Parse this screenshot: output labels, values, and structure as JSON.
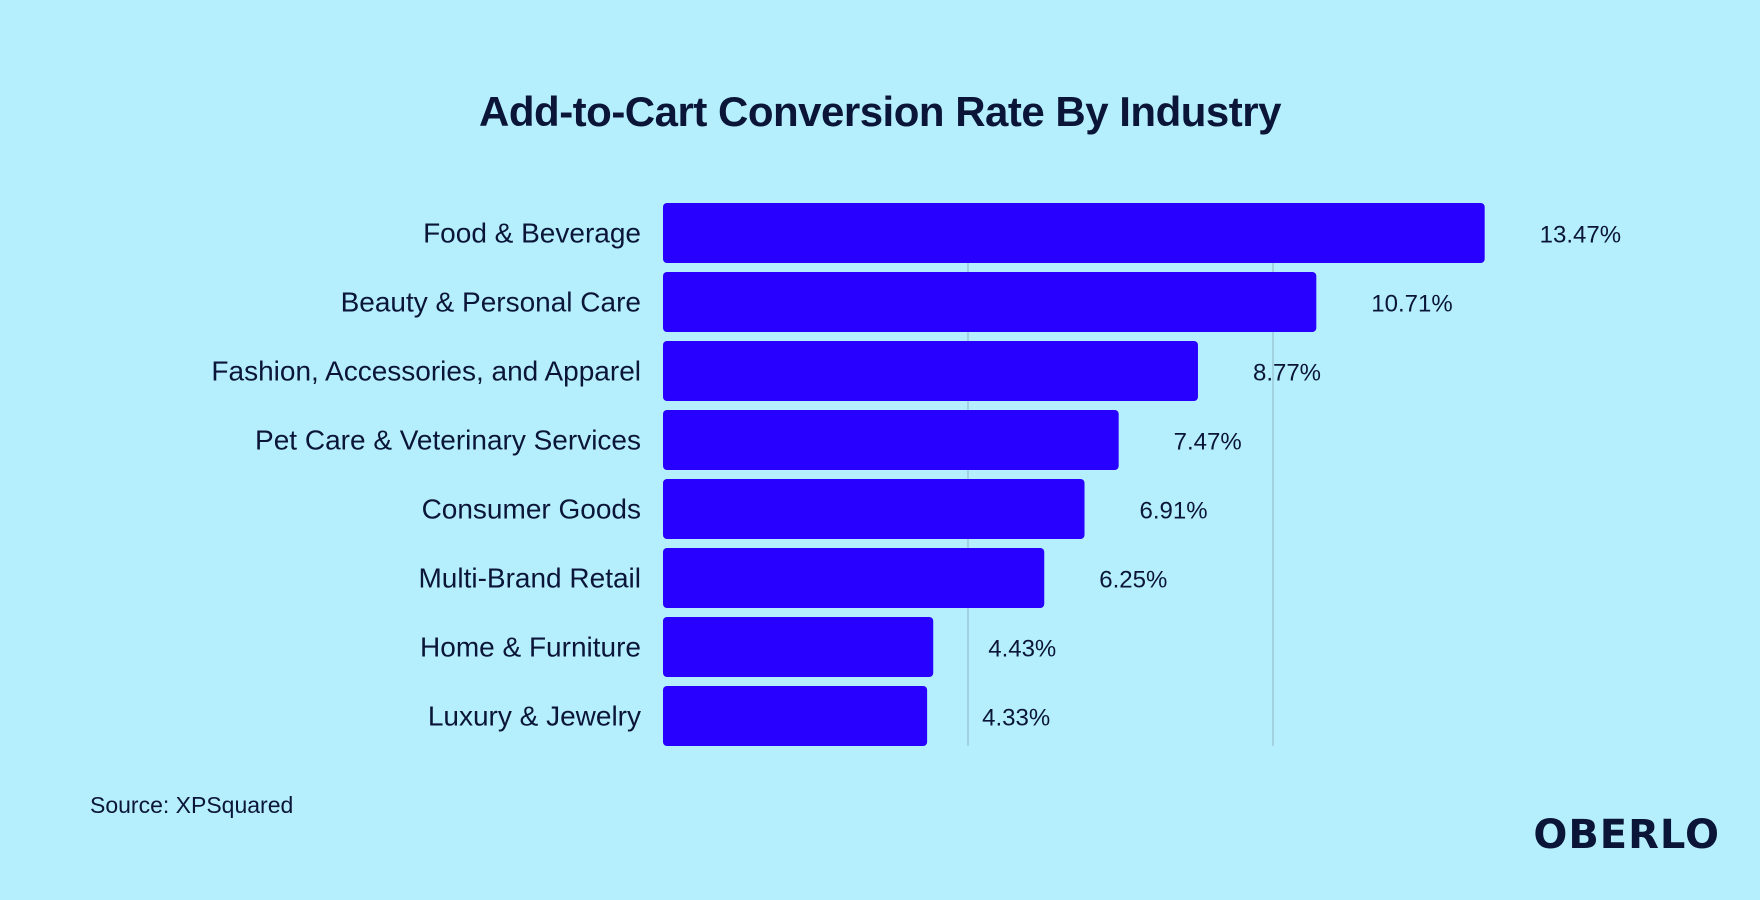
{
  "chart_data": {
    "type": "bar",
    "orientation": "horizontal",
    "title": "Add-to-Cart Conversion Rate By Industry",
    "categories": [
      "Food & Beverage",
      "Beauty & Personal Care",
      "Fashion, Accessories, and Apparel",
      "Pet Care & Veterinary Services",
      "Consumer Goods",
      "Multi-Brand Retail",
      "Home & Furniture",
      "Luxury & Jewelry"
    ],
    "values": [
      13.47,
      10.71,
      8.77,
      7.47,
      6.91,
      6.25,
      4.43,
      4.33
    ],
    "value_labels": [
      "13.47%",
      "10.71%",
      "8.77%",
      "7.47%",
      "6.91%",
      "6.25%",
      "4.43%",
      "4.33%"
    ],
    "xlim": [
      0,
      15
    ],
    "gridlines": [
      5,
      10
    ],
    "grid": true,
    "bar_color": "#2800ff"
  },
  "source": "Source: XPSquared",
  "logo": "OBERLO",
  "colors": {
    "background": "#b5effd",
    "text": "#0b1538",
    "bar": "#2800ff",
    "grid": "#8fb6c2"
  }
}
